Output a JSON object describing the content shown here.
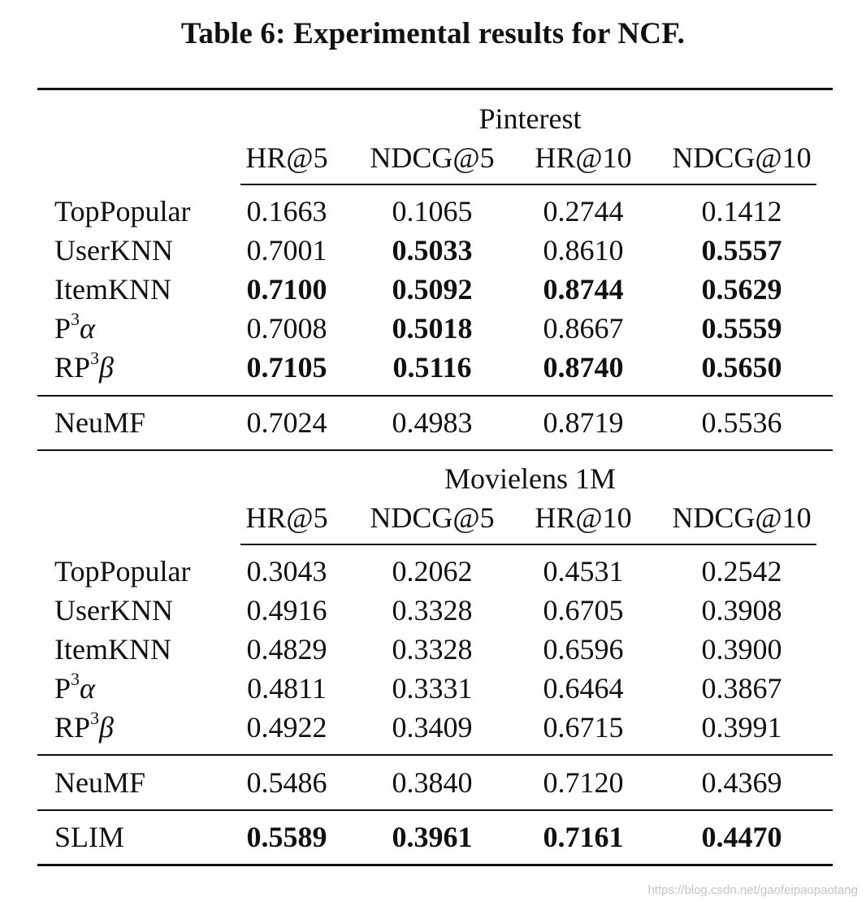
{
  "caption": "Table 6: Experimental results for NCF.",
  "metrics": [
    "HR@5",
    "NDCG@5",
    "HR@10",
    "NDCG@10"
  ],
  "sections": [
    {
      "dataset": "Pinterest",
      "baselines": [
        {
          "method": "TopPopular",
          "values": [
            "0.1663",
            "0.1065",
            "0.2744",
            "0.1412"
          ],
          "bold": [
            false,
            false,
            false,
            false
          ]
        },
        {
          "method": "UserKNN",
          "values": [
            "0.7001",
            "0.5033",
            "0.8610",
            "0.5557"
          ],
          "bold": [
            false,
            true,
            false,
            true
          ]
        },
        {
          "method": "ItemKNN",
          "values": [
            "0.7100",
            "0.5092",
            "0.8744",
            "0.5629"
          ],
          "bold": [
            true,
            true,
            true,
            true
          ]
        },
        {
          "method": "P3α",
          "method_base": "P",
          "method_sup": "3",
          "method_sym": "α",
          "values": [
            "0.7008",
            "0.5018",
            "0.8667",
            "0.5559"
          ],
          "bold": [
            false,
            true,
            false,
            true
          ]
        },
        {
          "method": "RP3β",
          "method_base": "RP",
          "method_sup": "3",
          "method_sym": "β",
          "values": [
            "0.7105",
            "0.5116",
            "0.8740",
            "0.5650"
          ],
          "bold": [
            true,
            true,
            true,
            true
          ]
        }
      ],
      "neural": {
        "method": "NeuMF",
        "values": [
          "0.7024",
          "0.4983",
          "0.8719",
          "0.5536"
        ],
        "bold": [
          false,
          false,
          false,
          false
        ]
      }
    },
    {
      "dataset": "Movielens 1M",
      "baselines": [
        {
          "method": "TopPopular",
          "values": [
            "0.3043",
            "0.2062",
            "0.4531",
            "0.2542"
          ],
          "bold": [
            false,
            false,
            false,
            false
          ]
        },
        {
          "method": "UserKNN",
          "values": [
            "0.4916",
            "0.3328",
            "0.6705",
            "0.3908"
          ],
          "bold": [
            false,
            false,
            false,
            false
          ]
        },
        {
          "method": "ItemKNN",
          "values": [
            "0.4829",
            "0.3328",
            "0.6596",
            "0.3900"
          ],
          "bold": [
            false,
            false,
            false,
            false
          ]
        },
        {
          "method": "P3α",
          "method_base": "P",
          "method_sup": "3",
          "method_sym": "α",
          "values": [
            "0.4811",
            "0.3331",
            "0.6464",
            "0.3867"
          ],
          "bold": [
            false,
            false,
            false,
            false
          ]
        },
        {
          "method": "RP3β",
          "method_base": "RP",
          "method_sup": "3",
          "method_sym": "β",
          "values": [
            "0.4922",
            "0.3409",
            "0.6715",
            "0.3991"
          ],
          "bold": [
            false,
            false,
            false,
            false
          ]
        }
      ],
      "neural": {
        "method": "NeuMF",
        "values": [
          "0.5486",
          "0.3840",
          "0.7120",
          "0.4369"
        ],
        "bold": [
          false,
          false,
          false,
          false
        ]
      }
    }
  ],
  "slim": {
    "method": "SLIM",
    "values": [
      "0.5589",
      "0.3961",
      "0.7161",
      "0.4470"
    ],
    "bold": [
      true,
      true,
      true,
      true
    ]
  },
  "watermark": "https://blog.csdn.net/gaofeipaopaotang"
}
